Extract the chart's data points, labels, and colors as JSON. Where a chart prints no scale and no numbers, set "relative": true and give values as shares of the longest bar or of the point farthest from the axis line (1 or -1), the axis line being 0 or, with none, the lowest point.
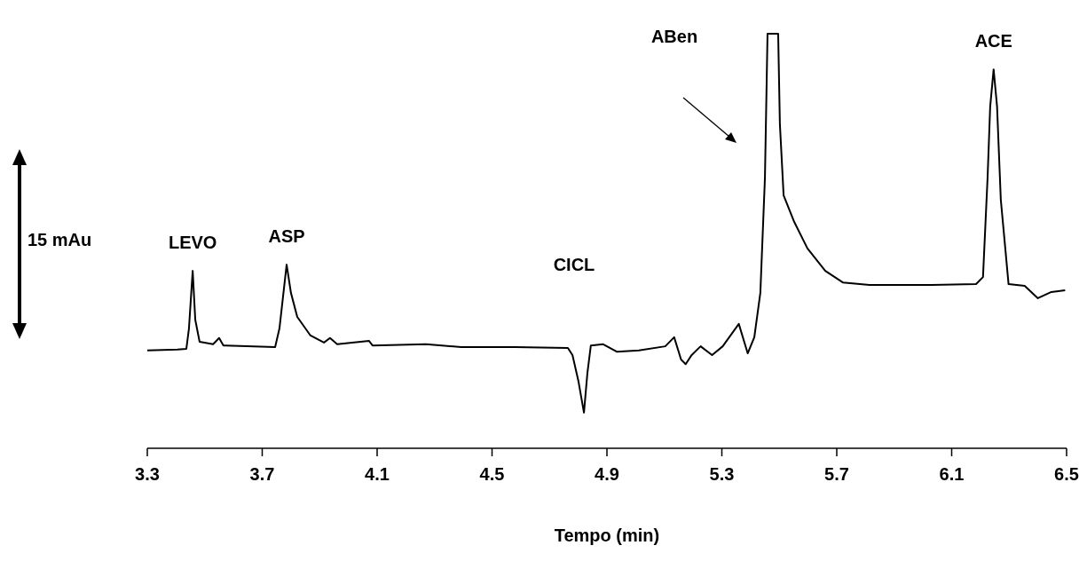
{
  "chart_data": {
    "type": "line",
    "relative": true,
    "xlabel": "Tempo (min)",
    "xlim": [
      3.3,
      6.5
    ],
    "xticks": [
      3.3,
      3.7,
      4.1,
      4.5,
      4.9,
      5.3,
      5.7,
      6.1,
      6.5
    ],
    "grid": false,
    "marker": "none",
    "line_style": "solid",
    "x": [
      3.3,
      3.405,
      3.436,
      3.445,
      3.458,
      3.467,
      3.482,
      3.529,
      3.55,
      3.565,
      3.745,
      3.76,
      3.785,
      3.8,
      3.822,
      3.868,
      3.915,
      3.936,
      3.961,
      4.072,
      4.084,
      4.27,
      4.393,
      4.579,
      4.764,
      4.78,
      4.801,
      4.82,
      4.832,
      4.844,
      4.887,
      4.934,
      5.011,
      5.103,
      5.134,
      5.158,
      5.174,
      5.195,
      5.226,
      5.266,
      5.303,
      5.359,
      5.39,
      5.413,
      5.434,
      5.45,
      5.459,
      5.496,
      5.502,
      5.515,
      5.552,
      5.598,
      5.66,
      5.721,
      5.814,
      6.03,
      6.185,
      6.209,
      6.225,
      6.234,
      6.246,
      6.258,
      6.271,
      6.298,
      6.354,
      6.4,
      6.447,
      6.495
    ],
    "series": [
      {
        "color": "#000000",
        "values": [
          0.236,
          0.238,
          0.24,
          0.289,
          0.428,
          0.31,
          0.257,
          0.251,
          0.266,
          0.248,
          0.244,
          0.289,
          0.443,
          0.375,
          0.317,
          0.272,
          0.255,
          0.266,
          0.251,
          0.259,
          0.248,
          0.251,
          0.244,
          0.244,
          0.242,
          0.225,
          0.161,
          0.086,
          0.182,
          0.248,
          0.251,
          0.233,
          0.236,
          0.246,
          0.268,
          0.214,
          0.203,
          0.225,
          0.246,
          0.225,
          0.246,
          0.3,
          0.229,
          0.268,
          0.375,
          0.653,
          1,
          1,
          0.782,
          0.61,
          0.546,
          0.482,
          0.428,
          0.4,
          0.394,
          0.394,
          0.396,
          0.413,
          0.653,
          0.824,
          0.914,
          0.824,
          0.6,
          0.396,
          0.392,
          0.362,
          0.377,
          0.381
        ]
      }
    ],
    "annotations": [
      "15 mAu",
      "CICL",
      "ABen",
      {
        "text": "LEVO",
        "x": 3.458,
        "y": 0.428
      },
      {
        "text": "ASP",
        "x": 3.785,
        "y": 0.443
      },
      {
        "text": "ACE",
        "x": 6.246,
        "y": 0.914
      }
    ]
  }
}
